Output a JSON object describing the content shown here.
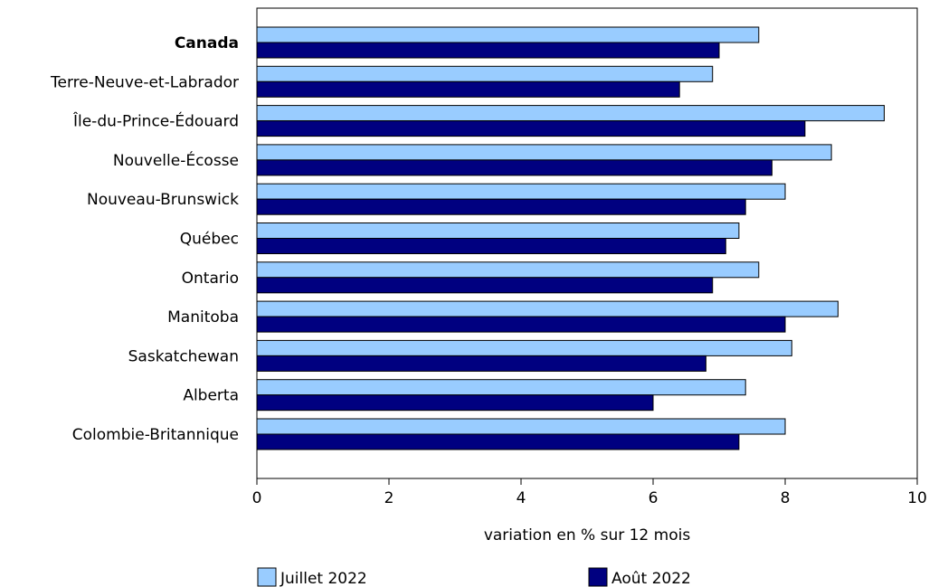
{
  "chart_data": {
    "type": "bar",
    "orientation": "horizontal",
    "categories": [
      "Canada",
      "Terre-Neuve-et-Labrador",
      "Île-du-Prince-Édouard",
      "Nouvelle-Écosse",
      "Nouveau-Brunswick",
      "Québec",
      "Ontario",
      "Manitoba",
      "Saskatchewan",
      "Alberta",
      "Colombie-Britannique"
    ],
    "bold_categories": [
      "Canada"
    ],
    "series": [
      {
        "name": "Juillet 2022",
        "color": "#99ccff",
        "values": [
          7.6,
          6.9,
          9.5,
          8.7,
          8.0,
          7.3,
          7.6,
          8.8,
          8.1,
          7.4,
          8.0
        ]
      },
      {
        "name": "Août 2022",
        "color": "#000080",
        "values": [
          7.0,
          6.4,
          8.3,
          7.8,
          7.4,
          7.1,
          6.9,
          8.0,
          6.8,
          6.0,
          7.3
        ]
      }
    ],
    "xlabel": "variation en % sur 12 mois",
    "ylabel": "",
    "xlim": [
      0,
      10
    ],
    "xticks": [
      "0",
      "2",
      "4",
      "6",
      "8",
      "10"
    ],
    "grid": false,
    "legend_position": "bottom"
  }
}
